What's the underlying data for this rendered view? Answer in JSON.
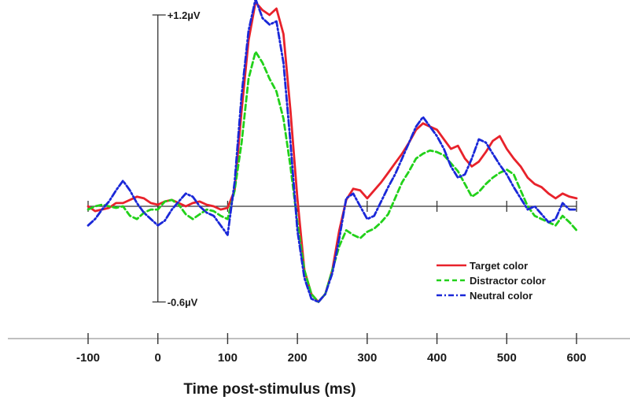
{
  "chart_data": {
    "type": "line",
    "title": "",
    "xlabel": "Time post-stimulus (ms)",
    "ylabel": "",
    "xlim": [
      -100,
      600
    ],
    "ylim": [
      -0.6,
      1.2
    ],
    "x_ticks": [
      -100,
      0,
      100,
      200,
      300,
      400,
      500,
      600
    ],
    "y_ticks": [
      {
        "value": 1.2,
        "label": "+1.2µV"
      },
      {
        "value": -0.6,
        "label": "-0.6µV"
      }
    ],
    "grid": false,
    "legend_position": "bottom-right",
    "x": [
      -100,
      -90,
      -80,
      -70,
      -60,
      -50,
      -40,
      -30,
      -20,
      -10,
      0,
      10,
      20,
      30,
      40,
      50,
      60,
      70,
      80,
      90,
      100,
      110,
      120,
      130,
      140,
      150,
      160,
      170,
      180,
      190,
      200,
      210,
      220,
      230,
      240,
      250,
      260,
      270,
      280,
      290,
      300,
      310,
      320,
      330,
      340,
      350,
      360,
      370,
      380,
      390,
      400,
      410,
      420,
      430,
      440,
      450,
      460,
      470,
      480,
      490,
      500,
      510,
      520,
      530,
      540,
      550,
      560,
      570,
      580,
      590,
      600
    ],
    "series": [
      {
        "name": "Target color",
        "color": "#e8222b",
        "style": "solid",
        "values": [
          0.0,
          -0.03,
          -0.02,
          -0.01,
          0.02,
          0.02,
          0.04,
          0.06,
          0.05,
          0.02,
          0.01,
          0.03,
          0.04,
          0.02,
          0.0,
          0.02,
          0.03,
          0.01,
          0.0,
          -0.02,
          -0.01,
          0.1,
          0.6,
          1.04,
          1.28,
          1.23,
          1.2,
          1.24,
          1.08,
          0.6,
          0.05,
          -0.4,
          -0.55,
          -0.6,
          -0.55,
          -0.4,
          -0.15,
          0.04,
          0.11,
          0.1,
          0.05,
          0.1,
          0.15,
          0.21,
          0.27,
          0.33,
          0.4,
          0.48,
          0.52,
          0.5,
          0.48,
          0.42,
          0.36,
          0.38,
          0.3,
          0.25,
          0.28,
          0.34,
          0.41,
          0.44,
          0.36,
          0.3,
          0.25,
          0.18,
          0.14,
          0.12,
          0.08,
          0.05,
          0.08,
          0.06,
          0.05
        ]
      },
      {
        "name": "Distractor color",
        "color": "#22d11a",
        "style": "dashed",
        "values": [
          -0.02,
          0.0,
          0.01,
          0.0,
          -0.01,
          0.0,
          -0.06,
          -0.08,
          -0.04,
          -0.02,
          -0.02,
          0.03,
          0.04,
          0.01,
          -0.05,
          -0.08,
          -0.05,
          -0.02,
          -0.03,
          -0.06,
          -0.08,
          0.1,
          0.4,
          0.8,
          0.97,
          0.9,
          0.8,
          0.72,
          0.55,
          0.25,
          -0.1,
          -0.4,
          -0.55,
          -0.6,
          -0.55,
          -0.4,
          -0.25,
          -0.15,
          -0.18,
          -0.2,
          -0.16,
          -0.14,
          -0.1,
          -0.05,
          0.05,
          0.15,
          0.22,
          0.3,
          0.33,
          0.35,
          0.34,
          0.32,
          0.27,
          0.22,
          0.14,
          0.06,
          0.09,
          0.14,
          0.18,
          0.21,
          0.23,
          0.2,
          0.1,
          0.0,
          -0.06,
          -0.08,
          -0.1,
          -0.12,
          -0.06,
          -0.1,
          -0.15
        ]
      },
      {
        "name": "Neutral color",
        "color": "#1a28d8",
        "style": "dashdot",
        "values": [
          -0.12,
          -0.08,
          -0.02,
          0.03,
          0.1,
          0.16,
          0.1,
          0.02,
          -0.04,
          -0.08,
          -0.12,
          -0.09,
          -0.02,
          0.03,
          0.08,
          0.06,
          0.0,
          -0.04,
          -0.06,
          -0.12,
          -0.18,
          0.15,
          0.7,
          1.1,
          1.3,
          1.18,
          1.14,
          1.16,
          0.9,
          0.4,
          -0.15,
          -0.45,
          -0.58,
          -0.6,
          -0.55,
          -0.42,
          -0.2,
          0.05,
          0.08,
          0.0,
          -0.08,
          -0.06,
          0.03,
          0.12,
          0.2,
          0.3,
          0.4,
          0.5,
          0.56,
          0.5,
          0.44,
          0.36,
          0.25,
          0.18,
          0.2,
          0.3,
          0.42,
          0.4,
          0.33,
          0.26,
          0.2,
          0.12,
          0.05,
          -0.02,
          0.0,
          -0.05,
          -0.1,
          -0.08,
          0.02,
          -0.02,
          -0.02
        ]
      }
    ]
  }
}
